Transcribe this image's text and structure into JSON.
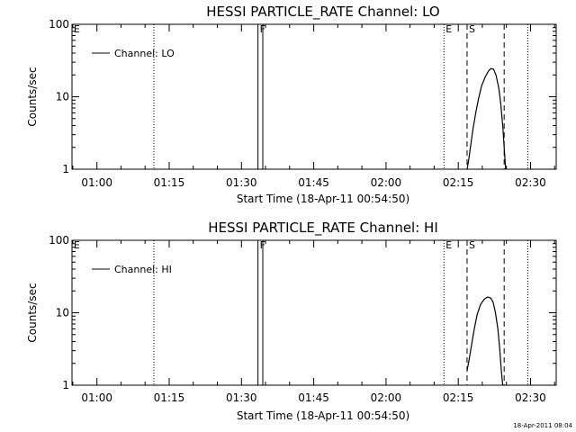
{
  "footer_timestamp": "18-Apr-2011 08:04",
  "chart_data": [
    {
      "type": "line",
      "title": "HESSI PARTICLE_RATE Channel: LO",
      "xlabel": "Start Time (18-Apr-11 00:54:50)",
      "ylabel": "Counts/sec",
      "x_unit": "minutes since 00:54:50",
      "x_ticks": [
        "01:00",
        "01:15",
        "01:30",
        "01:45",
        "02:00",
        "02:15",
        "02:30"
      ],
      "x_tick_minutes": [
        5.17,
        20.17,
        35.17,
        50.17,
        65.17,
        80.17,
        95.17
      ],
      "xlim": [
        0,
        100.5
      ],
      "y_scale": "log",
      "y_ticks": [
        "1",
        "10",
        "100"
      ],
      "ylim": [
        1,
        100
      ],
      "legend": {
        "label": "Channel: LO",
        "placement": "top-left"
      },
      "markers": [
        {
          "label": "E",
          "minute": 0,
          "style": "none"
        },
        {
          "label": "",
          "minute": 17.0,
          "style": "dotted"
        },
        {
          "label": "F",
          "minute": 38.6,
          "style": "solid"
        },
        {
          "label": "",
          "minute": 39.6,
          "style": "solid"
        },
        {
          "label": "E",
          "minute": 77.2,
          "style": "dotted"
        },
        {
          "label": "S",
          "minute": 82.0,
          "style": "dashed"
        },
        {
          "label": "",
          "minute": 89.7,
          "style": "dashed"
        },
        {
          "label": "",
          "minute": 94.6,
          "style": "dotted"
        }
      ],
      "series": [
        {
          "name": "Channel: LO",
          "points": [
            [
              82.0,
              1.0
            ],
            [
              82.3,
              1.3
            ],
            [
              82.7,
              2.0
            ],
            [
              83.2,
              3.5
            ],
            [
              83.8,
              6.0
            ],
            [
              84.4,
              9.5
            ],
            [
              85.0,
              14.0
            ],
            [
              85.8,
              19.0
            ],
            [
              86.5,
              23.0
            ],
            [
              87.0,
              24.5
            ],
            [
              87.5,
              24.0
            ],
            [
              88.0,
              20.0
            ],
            [
              88.6,
              13.0
            ],
            [
              89.0,
              8.0
            ],
            [
              89.4,
              4.0
            ],
            [
              89.7,
              2.0
            ],
            [
              90.0,
              1.0
            ]
          ]
        }
      ]
    },
    {
      "type": "line",
      "title": "HESSI PARTICLE_RATE Channel: HI",
      "xlabel": "Start Time (18-Apr-11 00:54:50)",
      "ylabel": "Counts/sec",
      "x_unit": "minutes since 00:54:50",
      "x_ticks": [
        "01:00",
        "01:15",
        "01:30",
        "01:45",
        "02:00",
        "02:15",
        "02:30"
      ],
      "x_tick_minutes": [
        5.17,
        20.17,
        35.17,
        50.17,
        65.17,
        80.17,
        95.17
      ],
      "xlim": [
        0,
        100.5
      ],
      "y_scale": "log",
      "y_ticks": [
        "1",
        "10",
        "100"
      ],
      "ylim": [
        1,
        100
      ],
      "legend": {
        "label": "Channel: HI",
        "placement": "top-left"
      },
      "markers": [
        {
          "label": "E",
          "minute": 0,
          "style": "none"
        },
        {
          "label": "",
          "minute": 17.0,
          "style": "dotted"
        },
        {
          "label": "F",
          "minute": 38.6,
          "style": "solid"
        },
        {
          "label": "",
          "minute": 39.6,
          "style": "solid"
        },
        {
          "label": "E",
          "minute": 77.2,
          "style": "dotted"
        },
        {
          "label": "S",
          "minute": 82.0,
          "style": "dashed"
        },
        {
          "label": "",
          "minute": 89.7,
          "style": "dashed"
        },
        {
          "label": "",
          "minute": 94.6,
          "style": "dotted"
        }
      ],
      "series": [
        {
          "name": "Channel: HI",
          "points": [
            [
              82.0,
              1.6
            ],
            [
              82.4,
              2.2
            ],
            [
              82.9,
              3.5
            ],
            [
              83.5,
              6.0
            ],
            [
              84.1,
              9.5
            ],
            [
              84.8,
              13.0
            ],
            [
              85.6,
              15.5
            ],
            [
              86.3,
              16.5
            ],
            [
              86.9,
              16.0
            ],
            [
              87.4,
              14.0
            ],
            [
              87.9,
              10.0
            ],
            [
              88.4,
              6.0
            ],
            [
              88.8,
              3.0
            ],
            [
              89.1,
              1.6
            ],
            [
              89.4,
              1.0
            ]
          ]
        }
      ]
    }
  ]
}
